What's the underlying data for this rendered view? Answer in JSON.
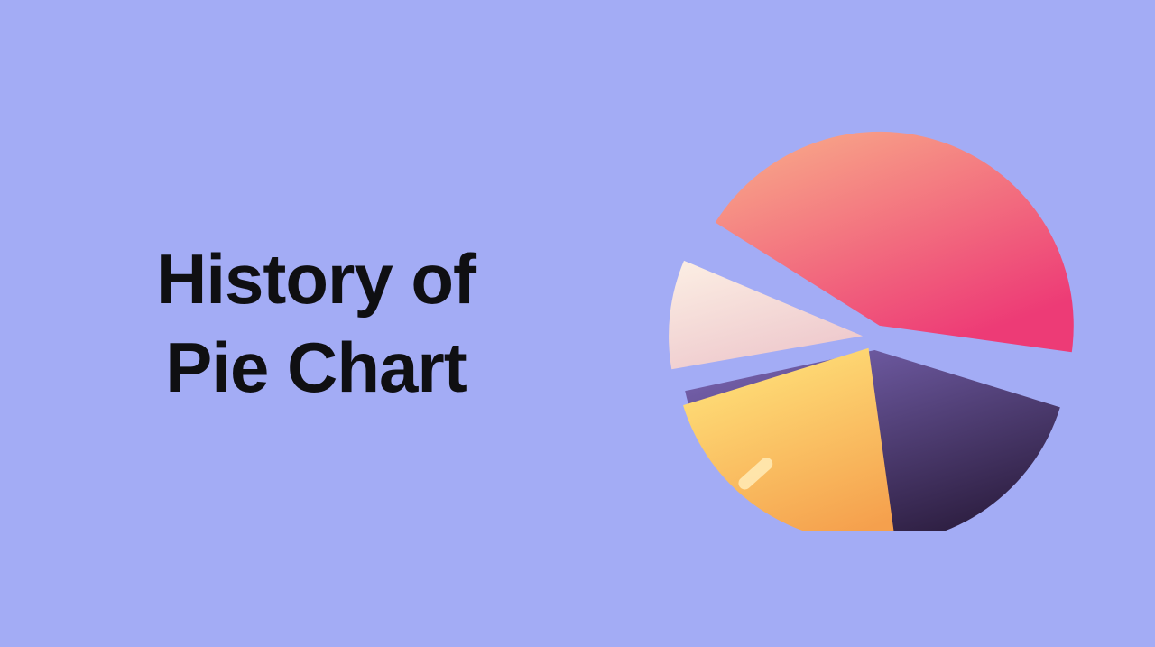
{
  "title": {
    "line1": "History of",
    "line2": "Pie Chart",
    "color": "#0f0f12",
    "fontsize": 78,
    "fontweight": 800
  },
  "background_color": "#a3acf5",
  "pie": {
    "type": "pie",
    "diameter": 430,
    "gap": 16,
    "explode": 14,
    "slices": [
      {
        "name": "purple",
        "start_angle": 105,
        "end_angle": 260,
        "gradient_from": "#7d68b8",
        "gradient_to": "#2e1f42"
      },
      {
        "name": "orange",
        "start_angle": 170,
        "end_angle": 255,
        "gradient_from": "#ffe27a",
        "gradient_to": "#f5a04d",
        "has_highlight": true
      },
      {
        "name": "cream",
        "start_angle": 258,
        "end_angle": 295,
        "gradient_from": "#fcefe4",
        "gradient_to": "#eec9cd"
      },
      {
        "name": "pink",
        "start_angle": 300,
        "end_angle": 460,
        "gradient_from": "#f9b08a",
        "gradient_to": "#ed3b76"
      }
    ],
    "highlight_pill_color": "#ffe9b3"
  }
}
